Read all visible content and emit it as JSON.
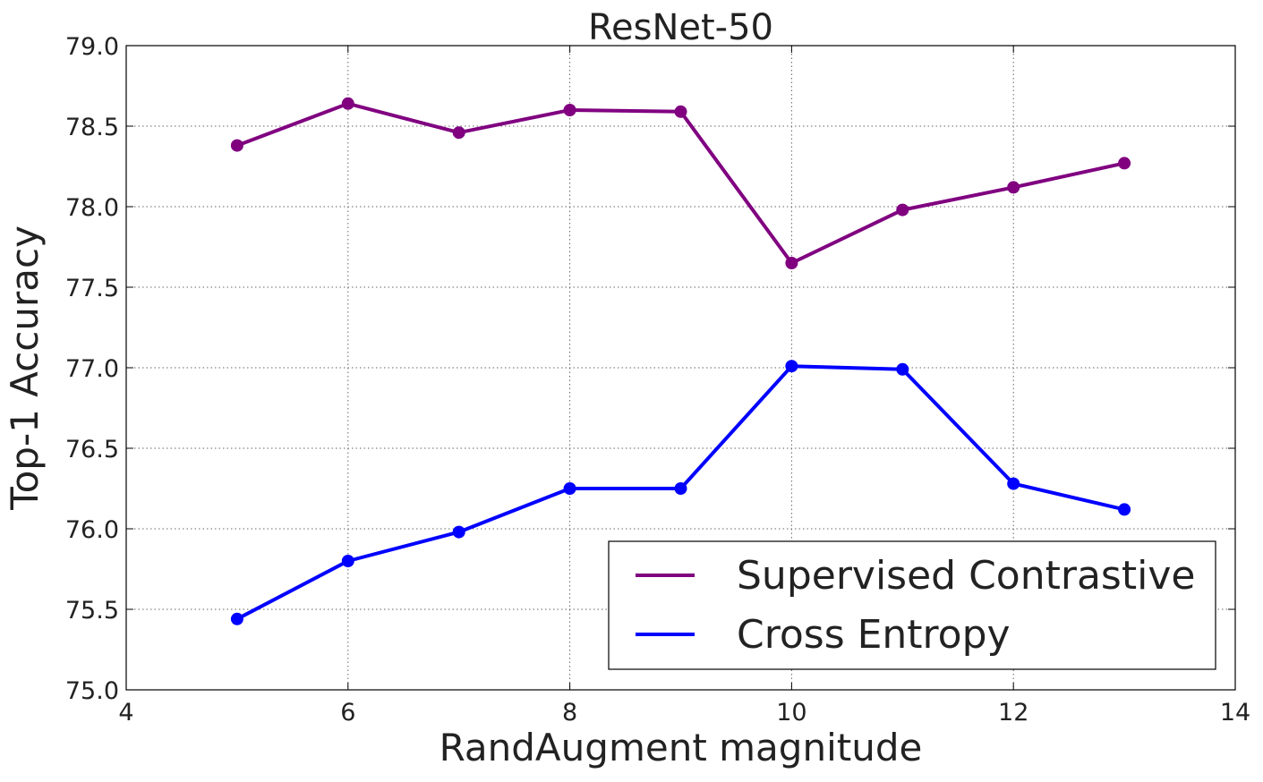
{
  "chart_data": {
    "type": "line",
    "title": "ResNet-50",
    "xlabel": "RandAugment magnitude",
    "ylabel": "Top-1 Accuracy",
    "xlim": [
      4,
      14
    ],
    "ylim": [
      75.0,
      79.0
    ],
    "xticks": [
      4,
      6,
      8,
      10,
      12,
      14
    ],
    "xtick_labels": [
      "4",
      "6",
      "8",
      "10",
      "12",
      "14"
    ],
    "yticks": [
      75.0,
      75.5,
      76.0,
      76.5,
      77.0,
      77.5,
      78.0,
      78.5,
      79.0
    ],
    "ytick_labels": [
      "75.0",
      "75.5",
      "76.0",
      "76.5",
      "77.0",
      "77.5",
      "78.0",
      "78.5",
      "79.0"
    ],
    "grid": true,
    "legend_position": "lower-right",
    "x": [
      5,
      6,
      7,
      8,
      9,
      10,
      11,
      12,
      13
    ],
    "series": [
      {
        "name": "Supervised Contrastive",
        "color": "#800080",
        "values": [
          78.38,
          78.64,
          78.46,
          78.6,
          78.59,
          77.65,
          77.98,
          78.12,
          78.27
        ]
      },
      {
        "name": "Cross Entropy",
        "color": "#0000ff",
        "values": [
          75.44,
          75.8,
          75.98,
          76.25,
          76.25,
          77.01,
          76.99,
          76.28,
          76.12
        ]
      }
    ]
  }
}
